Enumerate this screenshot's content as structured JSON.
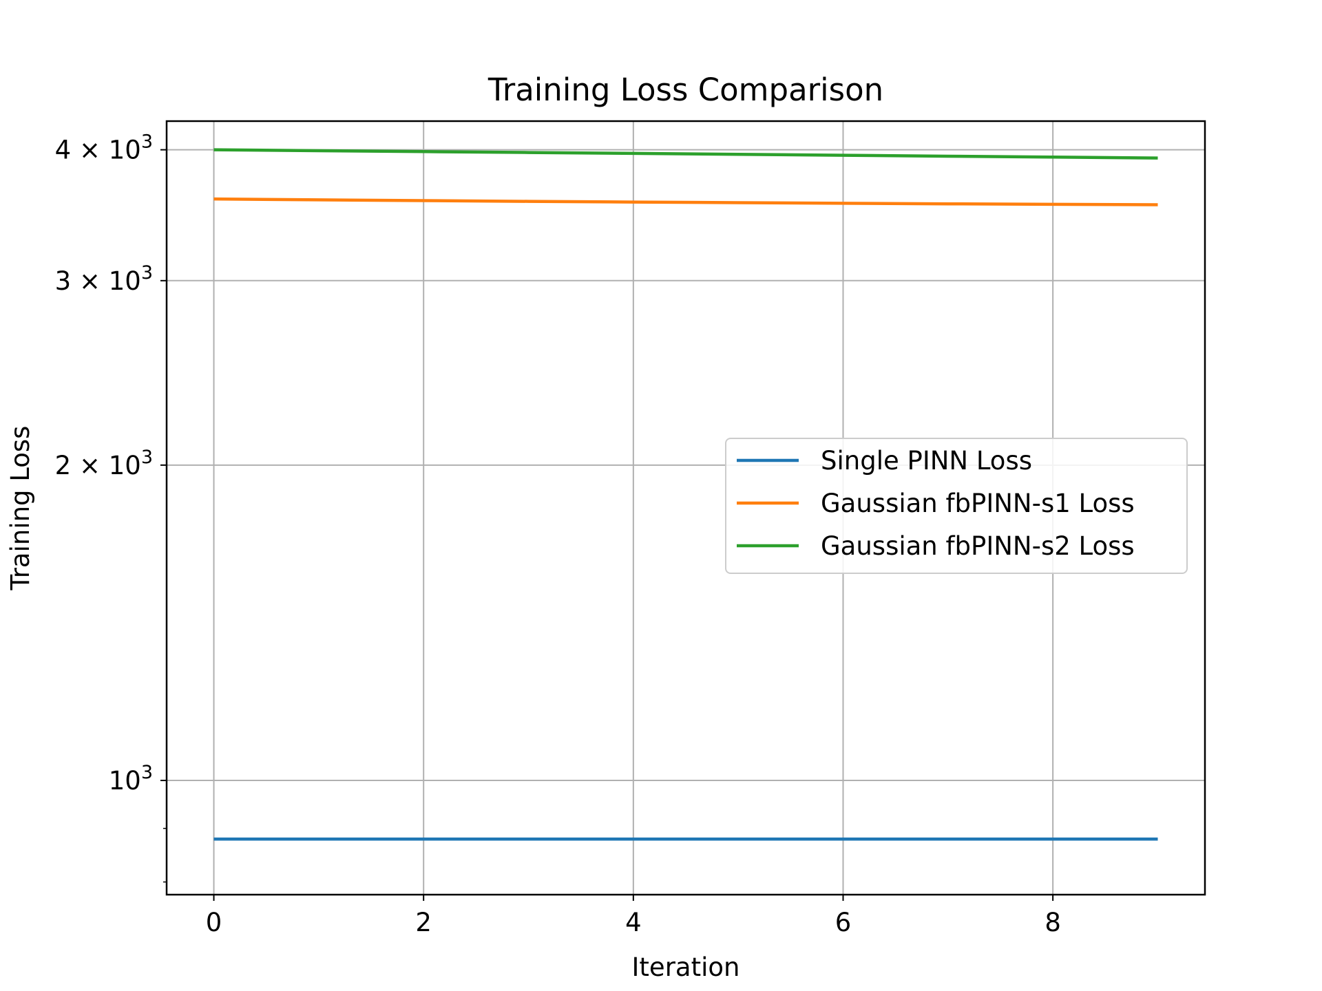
{
  "chart_data": {
    "type": "line",
    "title": "Training Loss Comparison",
    "xlabel": "Iteration",
    "ylabel": "Training Loss",
    "yscale": "log",
    "xlim": [
      -0.45,
      9.45
    ],
    "ylim": [
      778,
      4260
    ],
    "grid": true,
    "legend_placement": "center-right",
    "x": [
      0,
      1,
      2,
      3,
      4,
      5,
      6,
      7,
      8,
      9
    ],
    "series": [
      {
        "name": "Single PINN Loss",
        "color": "#1f77b4",
        "values": [
          879,
          879,
          879,
          879,
          879,
          879,
          879,
          879,
          879,
          879
        ]
      },
      {
        "name": "Gaussian fbPINN-s1 Loss",
        "color": "#ff7f0e",
        "values": [
          3590,
          3583,
          3577,
          3571,
          3566,
          3561,
          3556,
          3552,
          3548,
          3545
        ]
      },
      {
        "name": "Gaussian fbPINN-s2 Loss",
        "color": "#2ca02c",
        "values": [
          4000,
          3992,
          3984,
          3976,
          3968,
          3960,
          3952,
          3944,
          3936,
          3928
        ]
      }
    ],
    "xticks": [
      {
        "value": 0,
        "label": "0"
      },
      {
        "value": 2,
        "label": "2"
      },
      {
        "value": 4,
        "label": "4"
      },
      {
        "value": 6,
        "label": "6"
      },
      {
        "value": 8,
        "label": "8"
      }
    ],
    "yticks_major": [
      {
        "value": 1000,
        "mantissa": "",
        "base": "10",
        "exp": "3"
      },
      {
        "value": 2000,
        "mantissa": "2 × ",
        "base": "10",
        "exp": "3"
      },
      {
        "value": 3000,
        "mantissa": "3 × ",
        "base": "10",
        "exp": "3"
      },
      {
        "value": 4000,
        "mantissa": "4 × ",
        "base": "10",
        "exp": "3"
      }
    ],
    "yticks_minor": [
      800,
      900
    ]
  }
}
